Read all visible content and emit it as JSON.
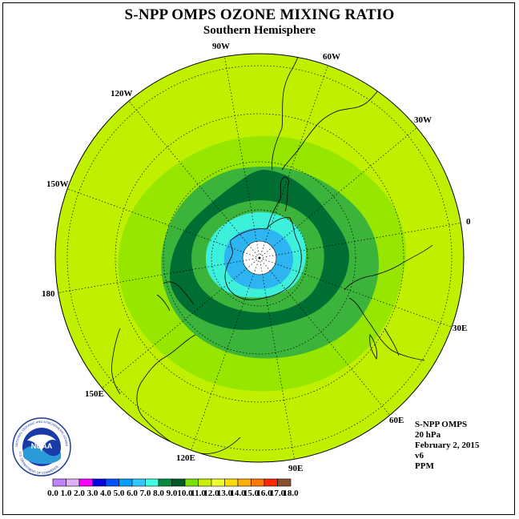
{
  "header": {
    "title": "S-NPP OMPS OZONE MIXING RATIO",
    "subtitle": "Southern Hemisphere"
  },
  "map": {
    "longitude_labels": [
      "0",
      "30W",
      "60W",
      "90W",
      "120W",
      "150W",
      "180",
      "150E",
      "120E",
      "90E",
      "60E",
      "30E"
    ],
    "fill_colors": {
      "outer": "#bff000",
      "ring_light": "#96e600",
      "ring_mid": "#3cb43c",
      "ring_dark": "#006e32",
      "core_cyan": "#3cf0dc",
      "core_blue": "#2eb4f0",
      "pole": "#ffffff"
    }
  },
  "info_block": {
    "instrument": "S-NPP OMPS",
    "pressure": "20 hPa",
    "date": "February 2, 2015",
    "version": "v6",
    "units": "PPM"
  },
  "logo": {
    "text": "NOAA",
    "ring_text": "NATIONAL OCEANIC AND ATMOSPHERIC ADMINISTRATION",
    "ring_text_bottom": "U.S. DEPARTMENT OF COMMERCE"
  },
  "colorbar": {
    "ticks": [
      "0.0",
      "1.0",
      "2.0",
      "3.0",
      "4.0",
      "5.0",
      "6.0",
      "7.0",
      "8.0",
      "9.0",
      "10.0",
      "11.0",
      "12.0",
      "13.0",
      "14.0",
      "15.0",
      "16.0",
      "17.0",
      "18.0"
    ],
    "colors": [
      "#c080ff",
      "#e0b0ff",
      "#ff00ff",
      "#0000e0",
      "#0050ff",
      "#00a0ff",
      "#30c8ff",
      "#40ffe0",
      "#008c3c",
      "#005a28",
      "#7ae000",
      "#c8f000",
      "#f0ff30",
      "#ffdc00",
      "#ffb000",
      "#ff7800",
      "#ff2800",
      "#8c5030"
    ]
  }
}
